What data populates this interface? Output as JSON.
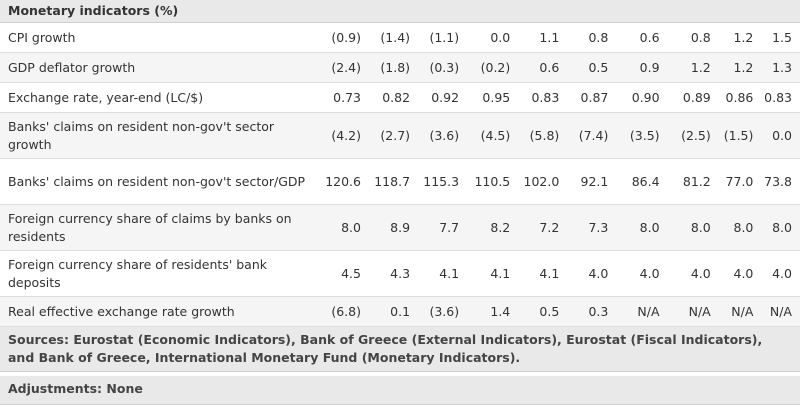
{
  "table": {
    "title": "Monetary indicators (%)",
    "rows": [
      {
        "label": "CPI growth",
        "values": [
          "(0.9)",
          "(1.4)",
          "(1.1)",
          "0.0",
          "1.1",
          "0.8",
          "0.6",
          "0.8",
          "1.2",
          "1.5"
        ]
      },
      {
        "label": "GDP deflator growth",
        "values": [
          "(2.4)",
          "(1.8)",
          "(0.3)",
          "(0.2)",
          "0.6",
          "0.5",
          "0.9",
          "1.2",
          "1.2",
          "1.3"
        ]
      },
      {
        "label": "Exchange rate, year-end (LC/$)",
        "values": [
          "0.73",
          "0.82",
          "0.92",
          "0.95",
          "0.83",
          "0.87",
          "0.90",
          "0.89",
          "0.86",
          "0.83"
        ]
      },
      {
        "label": "Banks' claims on resident non-gov't sector growth",
        "values": [
          "(4.2)",
          "(2.7)",
          "(3.6)",
          "(4.5)",
          "(5.8)",
          "(7.4)",
          "(3.5)",
          "(2.5)",
          "(1.5)",
          "0.0"
        ]
      },
      {
        "label": "Banks' claims on resident non-gov't sector/GDP",
        "values": [
          "120.6",
          "118.7",
          "115.3",
          "110.5",
          "102.0",
          "92.1",
          "86.4",
          "81.2",
          "77.0",
          "73.8"
        ]
      },
      {
        "label": "Foreign currency share of claims by banks on residents",
        "values": [
          "8.0",
          "8.9",
          "7.7",
          "8.2",
          "7.2",
          "7.3",
          "8.0",
          "8.0",
          "8.0",
          "8.0"
        ]
      },
      {
        "label": "Foreign currency share of residents' bank deposits",
        "values": [
          "4.5",
          "4.3",
          "4.1",
          "4.1",
          "4.1",
          "4.0",
          "4.0",
          "4.0",
          "4.0",
          "4.0"
        ]
      },
      {
        "label": "Real effective exchange rate growth",
        "values": [
          "(6.8)",
          "0.1",
          "(3.6)",
          "1.4",
          "0.5",
          "0.3",
          "N/A",
          "N/A",
          "N/A",
          "N/A"
        ]
      }
    ]
  },
  "sources": "Sources: Eurostat (Economic Indicators), Bank of Greece (External Indicators), Eurostat (Fiscal Indicators), and Bank of Greece, International Monetary Fund (Monetary Indicators).",
  "adjustments": "Adjustments: None"
}
